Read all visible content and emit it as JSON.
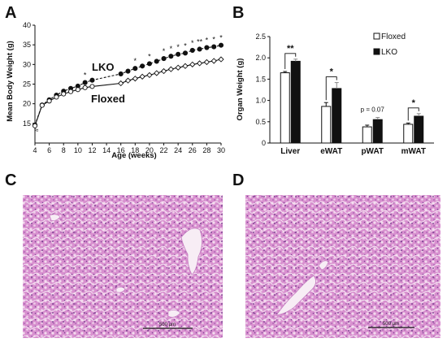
{
  "panels": {
    "a": "A",
    "b": "B",
    "c": "C",
    "d": "D"
  },
  "chart_data": [
    {
      "type": "line",
      "xlabel": "Age (weeks)",
      "ylabel": "Mean Body Weight (g)",
      "xlim": [
        4,
        30
      ],
      "ylim": [
        10,
        40
      ],
      "xticks": [
        4,
        6,
        8,
        10,
        12,
        14,
        16,
        18,
        20,
        22,
        24,
        26,
        28,
        30
      ],
      "yticks": [
        15,
        20,
        25,
        30,
        35,
        40
      ],
      "axis_break": "≈",
      "x": [
        4,
        5,
        6,
        7,
        8,
        9,
        10,
        11,
        12,
        16,
        17,
        18,
        19,
        20,
        21,
        22,
        23,
        24,
        25,
        26,
        27,
        28,
        29,
        30
      ],
      "series": [
        {
          "name": "LKO",
          "values": [
            14.6,
            19.7,
            21.0,
            22.2,
            23.2,
            23.9,
            24.5,
            25.4,
            26.0,
            27.6,
            28.3,
            29.0,
            29.6,
            30.2,
            30.8,
            31.5,
            32.1,
            32.6,
            32.9,
            33.6,
            33.9,
            34.3,
            34.5,
            34.9
          ]
        },
        {
          "name": "Floxed",
          "values": [
            14.4,
            19.6,
            20.7,
            21.7,
            22.5,
            23.1,
            23.6,
            24.1,
            24.4,
            25.2,
            25.9,
            26.4,
            26.9,
            27.3,
            27.8,
            28.3,
            28.8,
            29.2,
            29.6,
            30.0,
            30.3,
            30.6,
            30.9,
            31.3
          ]
        }
      ],
      "annotations": [
        {
          "x": 11,
          "text": "*"
        },
        {
          "x": 18,
          "text": "*"
        },
        {
          "x": 20,
          "text": "*"
        },
        {
          "x": 22,
          "text": "*"
        },
        {
          "x": 23,
          "text": "*"
        },
        {
          "x": 24,
          "text": "*"
        },
        {
          "x": 25,
          "text": "*"
        },
        {
          "x": 26,
          "text": "*"
        },
        {
          "x": 27,
          "text": "**"
        },
        {
          "x": 28,
          "text": "*"
        },
        {
          "x": 29,
          "text": "*"
        },
        {
          "x": 30,
          "text": "*"
        }
      ]
    },
    {
      "type": "bar",
      "ylabel": "Organ Weight (g)",
      "ylim": [
        0,
        2.5
      ],
      "yticks": [
        "0",
        "0.5",
        "1.0",
        "1.5",
        "2.0",
        "2.5"
      ],
      "categories": [
        "Liver",
        "eWAT",
        "pWAT",
        "mWAT"
      ],
      "series": [
        {
          "name": "Floxed",
          "values": [
            1.65,
            0.86,
            0.38,
            0.44
          ],
          "errors": [
            0.03,
            0.09,
            0.04,
            0.03
          ]
        },
        {
          "name": "LKO",
          "values": [
            1.92,
            1.28,
            0.55,
            0.63
          ],
          "errors": [
            0.05,
            0.14,
            0.05,
            0.06
          ]
        }
      ],
      "legend": "top-right",
      "significance": [
        {
          "category": "Liver",
          "text": "**"
        },
        {
          "category": "eWAT",
          "text": "*"
        },
        {
          "category": "pWAT",
          "text": "p = 0.07"
        },
        {
          "category": "mWAT",
          "text": "*"
        }
      ]
    }
  ],
  "micrographs": {
    "c_scale": "500 μm",
    "d_scale": "500 μm"
  }
}
